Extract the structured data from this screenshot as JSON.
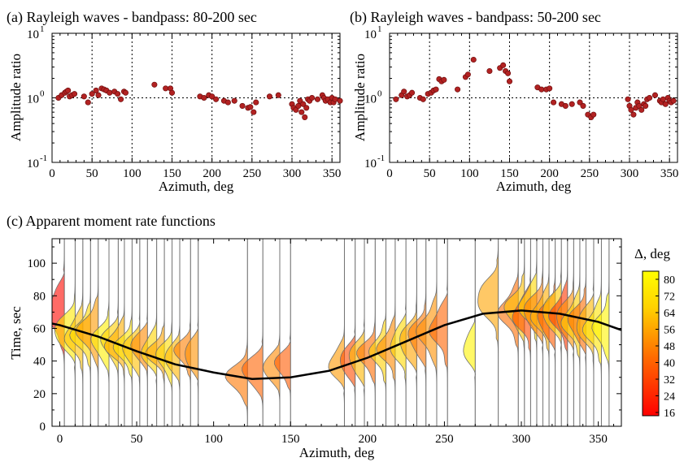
{
  "panel_a": {
    "title": "(a) Rayleigh waves - bandpass: 80-200 sec"
  },
  "panel_b": {
    "title": "(b) Rayleigh waves - bandpass: 50-200 sec"
  },
  "panel_c": {
    "title": "(c) Apparent moment rate functions"
  },
  "colorbar": {
    "label": "Δ, deg",
    "ticks": [
      "80",
      "72",
      "64",
      "56",
      "48",
      "40",
      "32",
      "24",
      "16"
    ],
    "colors": [
      "#ff0000",
      "#ff6a00",
      "#ffd200",
      "#ffff00"
    ]
  },
  "chart_data": [
    {
      "type": "scatter",
      "title": "(a) Rayleigh waves - bandpass: 80-200 sec",
      "xlabel": "Azimuth, deg",
      "ylabel": "Amplitude ratio",
      "xlim": [
        0,
        360
      ],
      "ylim": [
        0.1,
        10
      ],
      "yscale": "log",
      "grid": "dotted",
      "xticks": [
        "0",
        "50",
        "100",
        "150",
        "200",
        "250",
        "300",
        "350"
      ],
      "yticks": [
        "10^-1",
        "10^0",
        "10^1"
      ],
      "x": [
        8,
        12,
        16,
        18,
        20,
        22,
        25,
        28,
        40,
        45,
        50,
        55,
        58,
        62,
        65,
        68,
        72,
        78,
        82,
        86,
        90,
        92,
        128,
        142,
        148,
        150,
        185,
        190,
        196,
        200,
        205,
        215,
        220,
        228,
        238,
        245,
        248,
        252,
        255,
        272,
        283,
        300,
        302,
        305,
        308,
        310,
        312,
        314,
        316,
        318,
        320,
        322,
        325,
        332,
        338,
        340,
        342,
        345,
        348,
        350,
        352,
        354,
        360
      ],
      "y": [
        1.0,
        1.1,
        1.2,
        1.25,
        1.3,
        1.05,
        1.1,
        1.15,
        1.05,
        0.85,
        1.15,
        1.3,
        1.1,
        1.4,
        1.35,
        1.3,
        1.2,
        1.25,
        1.15,
        0.95,
        1.25,
        1.2,
        1.6,
        1.4,
        1.4,
        1.2,
        1.05,
        1.0,
        1.1,
        1.05,
        0.95,
        0.9,
        0.85,
        0.9,
        0.75,
        0.7,
        0.72,
        0.6,
        0.85,
        1.05,
        1.1,
        0.8,
        0.7,
        0.65,
        0.75,
        0.9,
        0.6,
        0.8,
        0.5,
        0.7,
        0.95,
        0.9,
        1.0,
        0.95,
        1.1,
        1.0,
        0.9,
        0.95,
        0.85,
        1.0,
        0.85,
        0.95,
        0.9
      ]
    },
    {
      "type": "scatter",
      "title": "(b) Rayleigh waves - bandpass: 50-200 sec",
      "xlabel": "Azimuth, deg",
      "ylabel": "Amplitude ratio",
      "xlim": [
        0,
        360
      ],
      "ylim": [
        0.1,
        10
      ],
      "yscale": "log",
      "grid": "dotted",
      "xticks": [
        "0",
        "50",
        "100",
        "150",
        "200",
        "250",
        "300",
        "350"
      ],
      "yticks": [
        "10^-1",
        "10^0",
        "10^1"
      ],
      "x": [
        8,
        15,
        18,
        22,
        25,
        28,
        38,
        42,
        48,
        52,
        55,
        58,
        62,
        65,
        68,
        85,
        95,
        98,
        105,
        125,
        138,
        142,
        145,
        148,
        150,
        185,
        190,
        196,
        200,
        205,
        215,
        220,
        228,
        238,
        242,
        248,
        252,
        255,
        298,
        300,
        302,
        305,
        308,
        310,
        312,
        315,
        318,
        320,
        322,
        325,
        332,
        338,
        340,
        342,
        345,
        348,
        350,
        352,
        355
      ],
      "y": [
        0.95,
        1.1,
        1.25,
        1.05,
        1.1,
        1.2,
        1.0,
        0.95,
        1.15,
        1.2,
        1.3,
        1.35,
        1.95,
        1.8,
        1.9,
        1.35,
        2.1,
        2.3,
        3.9,
        2.6,
        2.9,
        3.2,
        2.6,
        2.4,
        1.8,
        1.45,
        1.35,
        1.35,
        1.4,
        0.85,
        0.8,
        0.75,
        0.8,
        0.85,
        0.75,
        0.55,
        0.5,
        0.55,
        0.95,
        0.75,
        0.65,
        0.55,
        0.7,
        0.85,
        0.75,
        0.65,
        0.8,
        0.75,
        0.95,
        1.0,
        1.1,
        0.9,
        0.85,
        0.95,
        0.8,
        1.0,
        0.9,
        0.85,
        0.9
      ]
    },
    {
      "type": "area",
      "title": "(c) Apparent moment rate functions",
      "xlabel": "Azimuth, deg",
      "ylabel": "Time, sec",
      "xlim": [
        -5,
        365
      ],
      "ylim": [
        0,
        115
      ],
      "xticks": [
        "0",
        "50",
        "100",
        "150",
        "200",
        "250",
        "300",
        "350"
      ],
      "yticks": [
        "0",
        "20",
        "40",
        "60",
        "80",
        "100"
      ],
      "colorbar_label": "Δ, deg",
      "colorbar_ticks": [
        80,
        72,
        64,
        56,
        48,
        40,
        32,
        24,
        16
      ],
      "duration_curve": {
        "x": [
          -5,
          0,
          25,
          50,
          75,
          100,
          125,
          150,
          175,
          200,
          225,
          250,
          275,
          300,
          325,
          350,
          365
        ],
        "y": [
          63,
          62,
          55,
          46,
          38,
          33,
          29,
          30,
          34,
          42,
          52,
          62,
          69,
          71,
          69,
          64,
          59
        ]
      },
      "traces": [
        {
          "az": 3,
          "dist": 18,
          "peak": 70,
          "width": 15,
          "amp": 10
        },
        {
          "az": 10,
          "dist": 76,
          "peak": 58,
          "width": 12,
          "amp": 12
        },
        {
          "az": 15,
          "dist": 62,
          "peak": 55,
          "width": 12,
          "amp": 10
        },
        {
          "az": 20,
          "dist": 70,
          "peak": 56,
          "width": 11,
          "amp": 11
        },
        {
          "az": 25,
          "dist": 54,
          "peak": 58,
          "width": 12,
          "amp": 12
        },
        {
          "az": 32,
          "dist": 78,
          "peak": 52,
          "width": 11,
          "amp": 10
        },
        {
          "az": 38,
          "dist": 66,
          "peak": 52,
          "width": 10,
          "amp": 10
        },
        {
          "az": 42,
          "dist": 58,
          "peak": 50,
          "width": 10,
          "amp": 11
        },
        {
          "az": 47,
          "dist": 74,
          "peak": 48,
          "width": 10,
          "amp": 10
        },
        {
          "az": 52,
          "dist": 62,
          "peak": 47,
          "width": 10,
          "amp": 10
        },
        {
          "az": 57,
          "dist": 50,
          "peak": 49,
          "width": 9,
          "amp": 10
        },
        {
          "az": 63,
          "dist": 68,
          "peak": 46,
          "width": 10,
          "amp": 9
        },
        {
          "az": 68,
          "dist": 56,
          "peak": 45,
          "width": 9,
          "amp": 10
        },
        {
          "az": 73,
          "dist": 72,
          "peak": 43,
          "width": 10,
          "amp": 9
        },
        {
          "az": 78,
          "dist": 60,
          "peak": 42,
          "width": 9,
          "amp": 9
        },
        {
          "az": 85,
          "dist": 48,
          "peak": 46,
          "width": 9,
          "amp": 9
        },
        {
          "az": 90,
          "dist": 52,
          "peak": 44,
          "width": 10,
          "amp": 8
        },
        {
          "az": 122,
          "dist": 46,
          "peak": 30,
          "width": 10,
          "amp": 12
        },
        {
          "az": 132,
          "dist": 42,
          "peak": 34,
          "width": 10,
          "amp": 12
        },
        {
          "az": 143,
          "dist": 50,
          "peak": 36,
          "width": 9,
          "amp": 10
        },
        {
          "az": 150,
          "dist": 40,
          "peak": 38,
          "width": 9,
          "amp": 9
        },
        {
          "az": 185,
          "dist": 54,
          "peak": 38,
          "width": 10,
          "amp": 9
        },
        {
          "az": 192,
          "dist": 36,
          "peak": 40,
          "width": 10,
          "amp": 9
        },
        {
          "az": 198,
          "dist": 60,
          "peak": 42,
          "width": 11,
          "amp": 9
        },
        {
          "az": 205,
          "dist": 44,
          "peak": 44,
          "width": 10,
          "amp": 10
        },
        {
          "az": 212,
          "dist": 66,
          "peak": 46,
          "width": 11,
          "amp": 9
        },
        {
          "az": 218,
          "dist": 50,
          "peak": 48,
          "width": 11,
          "amp": 10
        },
        {
          "az": 225,
          "dist": 70,
          "peak": 50,
          "width": 12,
          "amp": 9
        },
        {
          "az": 232,
          "dist": 56,
          "peak": 52,
          "width": 12,
          "amp": 10
        },
        {
          "az": 238,
          "dist": 46,
          "peak": 55,
          "width": 12,
          "amp": 10
        },
        {
          "az": 245,
          "dist": 52,
          "peak": 58,
          "width": 13,
          "amp": 11
        },
        {
          "az": 252,
          "dist": 42,
          "peak": 60,
          "width": 13,
          "amp": 10
        },
        {
          "az": 270,
          "dist": 80,
          "peak": 48,
          "width": 10,
          "amp": 7
        },
        {
          "az": 285,
          "dist": 56,
          "peak": 78,
          "width": 14,
          "amp": 12
        },
        {
          "az": 298,
          "dist": 44,
          "peak": 70,
          "width": 12,
          "amp": 11
        },
        {
          "az": 302,
          "dist": 62,
          "peak": 72,
          "width": 12,
          "amp": 11
        },
        {
          "az": 306,
          "dist": 36,
          "peak": 68,
          "width": 12,
          "amp": 10
        },
        {
          "az": 310,
          "dist": 70,
          "peak": 74,
          "width": 12,
          "amp": 10
        },
        {
          "az": 314,
          "dist": 48,
          "peak": 70,
          "width": 12,
          "amp": 11
        },
        {
          "az": 318,
          "dist": 58,
          "peak": 68,
          "width": 12,
          "amp": 10
        },
        {
          "az": 322,
          "dist": 40,
          "peak": 66,
          "width": 12,
          "amp": 10
        },
        {
          "az": 326,
          "dist": 64,
          "peak": 70,
          "width": 12,
          "amp": 11
        },
        {
          "az": 330,
          "dist": 30,
          "peak": 68,
          "width": 12,
          "amp": 10
        },
        {
          "az": 334,
          "dist": 52,
          "peak": 66,
          "width": 12,
          "amp": 10
        },
        {
          "az": 338,
          "dist": 66,
          "peak": 64,
          "width": 12,
          "amp": 10
        },
        {
          "az": 342,
          "dist": 44,
          "peak": 64,
          "width": 12,
          "amp": 10
        },
        {
          "az": 347,
          "dist": 60,
          "peak": 62,
          "width": 12,
          "amp": 10
        },
        {
          "az": 352,
          "dist": 74,
          "peak": 60,
          "width": 12,
          "amp": 10
        },
        {
          "az": 357,
          "dist": 80,
          "peak": 60,
          "width": 12,
          "amp": 9
        }
      ]
    }
  ]
}
